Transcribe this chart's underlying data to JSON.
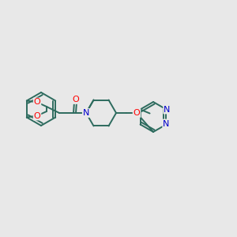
{
  "bg_color": "#e8e8e8",
  "bond_color": "#2d6b5e",
  "atom_colors": {
    "O": "#ff0000",
    "N": "#0000cc"
  },
  "figsize": [
    3.0,
    3.0
  ],
  "dpi": 100,
  "lw": 1.4,
  "fs": 7.5
}
